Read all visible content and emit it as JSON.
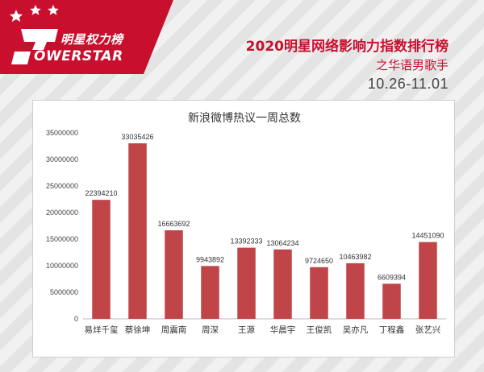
{
  "header": {
    "logo_cn": "明星权力榜",
    "logo_en": "OWERSTAR",
    "title": "2020明星网络影响力指数排行榜",
    "subtitle": "之华语男歌手",
    "date_range": "10.26-11.01"
  },
  "colors": {
    "brand_red": "#c8102e",
    "bar": "#bf4549"
  },
  "chart_data": {
    "type": "bar",
    "title": "新浪微博热议一周总数",
    "categories": [
      "易烊千玺",
      "蔡徐坤",
      "周震南",
      "周深",
      "王源",
      "华晨宇",
      "王俊凯",
      "吴亦凡",
      "丁程鑫",
      "张艺兴"
    ],
    "values": [
      22394210,
      33035426,
      16663692,
      9943892,
      13392333,
      13064234,
      9724650,
      10463982,
      6609394,
      14451090
    ],
    "value_labels": [
      "22394210",
      "33035426",
      "16663692",
      "9943892",
      "13392333",
      "13064234",
      "9724650",
      "10463982",
      "6609394",
      "14451090"
    ],
    "y_ticks": [
      "0",
      "5000000",
      "10000000",
      "15000000",
      "20000000",
      "25000000",
      "30000000",
      "35000000"
    ],
    "ylim": [
      0,
      35000000
    ],
    "xlabel": "",
    "ylabel": "",
    "grid": false,
    "legend": "none"
  }
}
